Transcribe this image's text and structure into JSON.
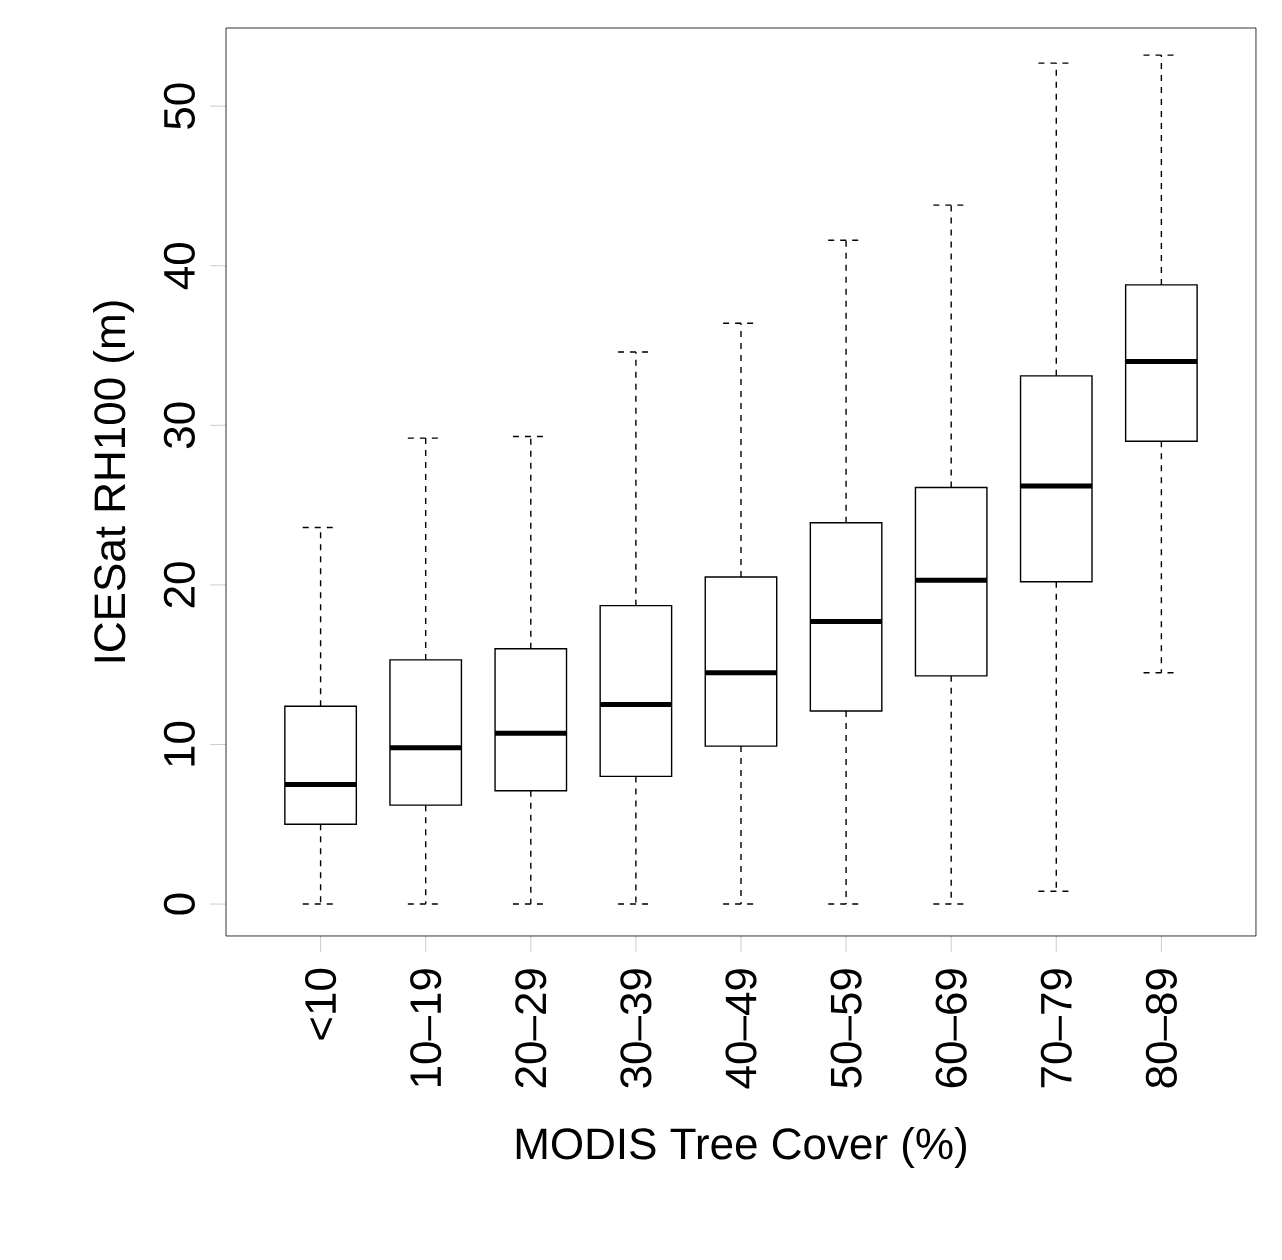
{
  "chart_data": {
    "type": "box",
    "xlabel": "MODIS Tree Cover (%)",
    "ylabel": "ICESat RH100 (m)",
    "categories": [
      "<10",
      "10–19",
      "20–29",
      "30–39",
      "40–49",
      "50–59",
      "60–69",
      "70–79",
      "80–89"
    ],
    "boxes": [
      {
        "low": 0,
        "q1": 5.0,
        "median": 7.5,
        "q3": 12.4,
        "high": 23.6
      },
      {
        "low": 0,
        "q1": 6.2,
        "median": 9.8,
        "q3": 15.3,
        "high": 29.2
      },
      {
        "low": 0,
        "q1": 7.1,
        "median": 10.7,
        "q3": 16.0,
        "high": 29.3
      },
      {
        "low": 0,
        "q1": 8.0,
        "median": 12.5,
        "q3": 18.7,
        "high": 34.6
      },
      {
        "low": 0,
        "q1": 9.9,
        "median": 14.5,
        "q3": 20.5,
        "high": 36.4
      },
      {
        "low": 0,
        "q1": 12.1,
        "median": 17.7,
        "q3": 23.9,
        "high": 41.6
      },
      {
        "low": 0,
        "q1": 14.3,
        "median": 20.3,
        "q3": 26.1,
        "high": 43.8
      },
      {
        "low": 0.8,
        "q1": 20.2,
        "median": 26.2,
        "q3": 33.1,
        "high": 52.7
      },
      {
        "low": 14.5,
        "q1": 29.0,
        "median": 34.0,
        "q3": 38.8,
        "high": 53.2
      }
    ],
    "color": "#000000",
    "ylim": [
      -2,
      54.9
    ],
    "yticks": [
      0,
      10,
      20,
      30,
      40,
      50
    ],
    "grid": false
  }
}
